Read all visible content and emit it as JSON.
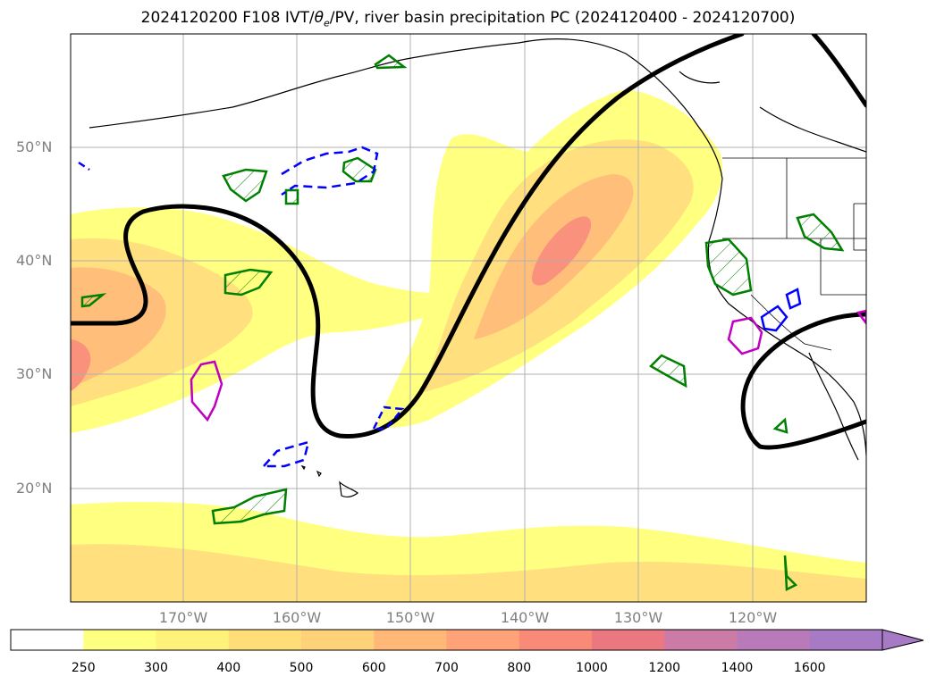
{
  "title": {
    "prefix": "2024120200 F108 IVT/",
    "theta": "θ",
    "theta_sub": "e",
    "suffix": "/PV, river basin precipitation PC (2024120400 - 2024120700)"
  },
  "lat_labels": [
    "50°N",
    "40°N",
    "30°N",
    "20°N"
  ],
  "lon_labels": [
    "170°W",
    "160°W",
    "150°W",
    "140°W",
    "130°W",
    "120°W"
  ],
  "colorbar": {
    "levels": [
      "250",
      "300",
      "400",
      "500",
      "600",
      "700",
      "800",
      "1000",
      "1200",
      "1400",
      "1600"
    ],
    "colors": [
      "#ffffff",
      "#ffff80",
      "#fff27a",
      "#ffde78",
      "#ffd27a",
      "#ffb878",
      "#ffa278",
      "#fa8a78",
      "#eb7880",
      "#cc7aa6",
      "#b87ab8",
      "#a67ac4"
    ]
  },
  "map_colors": {
    "ocean": "#ffffff",
    "ivt_low": "#ffff80",
    "ivt_mid": "#ffdf7e",
    "ivt_high": "#ffbe7a",
    "ivt_peak": "#f9917d",
    "pv_line": "#000000",
    "positive_pc": "#008000",
    "negative_pc": "#0000ff",
    "high_pc": "#c000c0",
    "grid": "#b0b0b0"
  }
}
